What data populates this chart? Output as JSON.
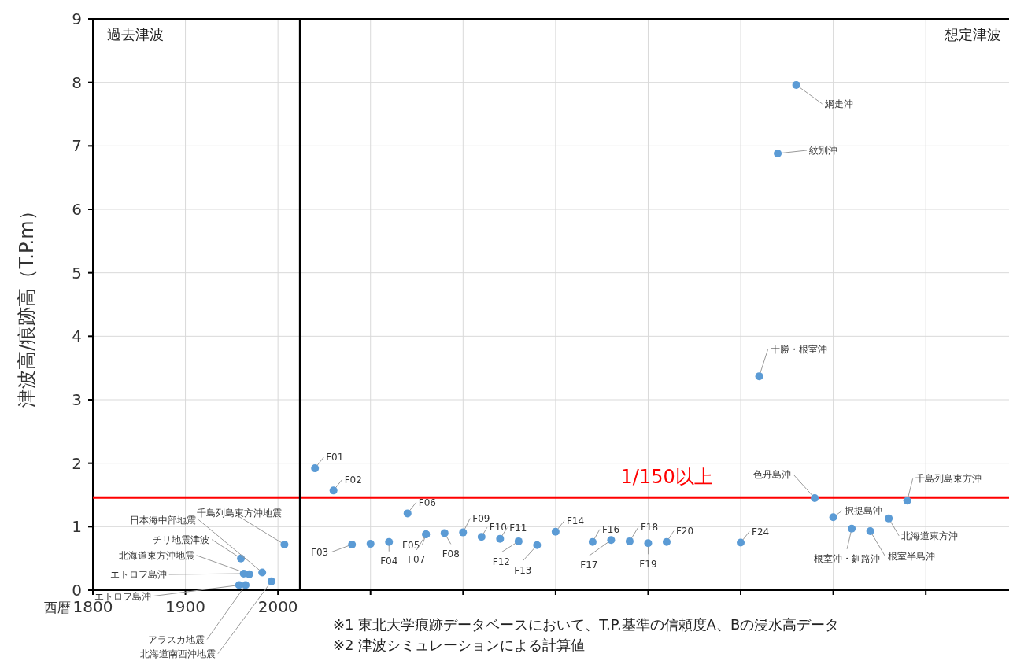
{
  "chart_data": {
    "type": "scatter",
    "ylabel": "津波高/痕跡高（T.P.m）",
    "xlabel": "西暦",
    "xlim": [
      1800,
      2790
    ],
    "xticks": [
      1800,
      1900,
      2000,
      {
        "value": 2100,
        "label": null
      },
      {
        "value": 2200,
        "label": null
      },
      {
        "value": 2300,
        "label": null
      },
      {
        "value": 2400,
        "label": null
      },
      {
        "value": 2500,
        "label": null
      },
      {
        "value": 2600,
        "label": null
      },
      {
        "value": 2700,
        "label": null
      }
    ],
    "ylim": [
      0,
      9
    ],
    "yticks": [
      0,
      1,
      2,
      3,
      4,
      5,
      6,
      7,
      8,
      9
    ],
    "grid": true,
    "marker": "circle",
    "series": [
      {
        "color": "#5b9bd5",
        "x": [
          2007,
          1960,
          1983,
          1969,
          1963,
          1958,
          1965,
          1993
        ],
        "values": [
          0.72,
          0.5,
          0.28,
          0.25,
          0.26,
          0.08,
          0.08,
          0.14
        ],
        "value_labels": [
          "千島列島東方沖地震",
          "チリ地震津波",
          "日本海中部地震",
          "北海道東方沖地震",
          "エトロフ島沖",
          "エトロフ島沖",
          "アラスカ地震",
          "北海道南西沖地震"
        ]
      },
      {
        "color": "#5b9bd5",
        "x": [
          2040,
          2060,
          2080,
          2100,
          2120,
          2140,
          2160,
          2160,
          2180,
          2200,
          2220,
          2240,
          2260,
          2280,
          2300,
          2340,
          2360,
          2380,
          2400,
          2420,
          2500,
          2520,
          2540,
          2560,
          2580,
          2600,
          2620,
          2640,
          2660,
          2680
        ],
        "values": [
          1.92,
          1.57,
          0.72,
          0.73,
          0.76,
          1.21,
          0.88,
          0.88,
          0.9,
          0.91,
          0.84,
          0.81,
          0.77,
          0.71,
          0.92,
          0.76,
          0.79,
          0.77,
          0.74,
          0.76,
          0.75,
          3.37,
          6.88,
          7.96,
          1.45,
          1.15,
          0.97,
          0.93,
          1.13,
          1.41
        ],
        "value_labels": [
          "F01",
          "F02",
          "F03",
          null,
          "F04",
          "F06",
          "F05",
          "F07",
          "F08",
          "F09",
          "F10",
          "F11",
          "F12",
          "F13",
          "F14",
          "F16",
          "F17",
          "F18",
          "F19",
          "F20",
          "F24",
          "十勝・根室沖",
          "紋別沖",
          "網走沖",
          "色丹島沖",
          "択捉島沖",
          "根室沖・釧路沖",
          "根室半島沖",
          "北海道東方沖",
          "千島列島東方沖"
        ]
      }
    ],
    "ref_lines": [
      {
        "axis": "y",
        "value": 1.46,
        "label": "1/150以上",
        "color": "#ff0000"
      },
      {
        "axis": "x",
        "value": 2024,
        "label": null,
        "color": "#000000"
      }
    ],
    "annotations": [
      "過去津波",
      "想定津波",
      "※1  東北大学痕跡データベースにおいて、T.P.基準の信頼度A、Bの浸水高データ",
      "※2  津波シミュレーションによる計算値"
    ]
  }
}
